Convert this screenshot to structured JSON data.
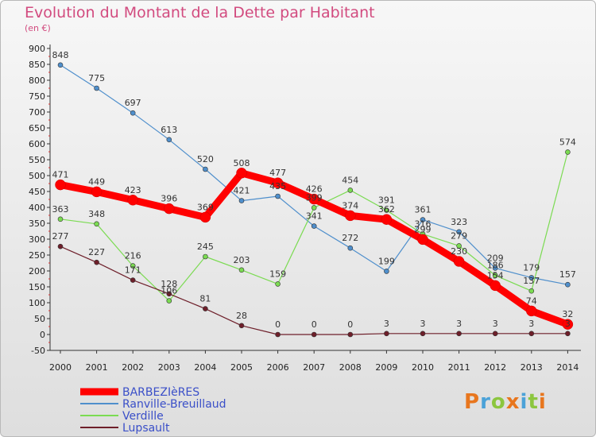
{
  "title": "Evolution du Montant de la Dette par Habitant",
  "subtitle": "(en €)",
  "logo_text": "Proxiti",
  "chart_data": {
    "type": "line",
    "title": "Evolution du Montant de la Dette par Habitant",
    "ylabel": "(en €)",
    "x": [
      "2000",
      "2001",
      "2002",
      "2003",
      "2004",
      "2005",
      "2006",
      "2007",
      "2008",
      "2009",
      "2010",
      "2011",
      "2012",
      "2013",
      "2014"
    ],
    "ylim": [
      -50,
      900
    ],
    "yticks": [
      -50,
      0,
      50,
      100,
      150,
      200,
      250,
      300,
      350,
      400,
      450,
      500,
      550,
      600,
      650,
      700,
      750,
      800,
      850,
      900
    ],
    "grid": false,
    "legend": "bottom-left",
    "series": [
      {
        "name": "BARBEZIèRES",
        "color": "#ff0000",
        "values": [
          471,
          449,
          423,
          396,
          369,
          508,
          477,
          426,
          374,
          362,
          299,
          230,
          154,
          74,
          32
        ]
      },
      {
        "name": "Ranville-Breuillaud",
        "color": "#4f8fcc",
        "values": [
          848,
          775,
          697,
          613,
          520,
          421,
          435,
          341,
          272,
          199,
          361,
          323,
          209,
          179,
          157
        ]
      },
      {
        "name": "Verdille",
        "color": "#7bdb52",
        "values": [
          363,
          348,
          216,
          106,
          245,
          203,
          159,
          399,
          454,
          391,
          316,
          279,
          186,
          137,
          574
        ]
      },
      {
        "name": "Lupsault",
        "color": "#6e1f2a",
        "values": [
          277,
          227,
          171,
          128,
          81,
          28,
          0,
          0,
          0,
          3,
          3,
          3,
          3,
          3,
          3
        ]
      }
    ]
  }
}
